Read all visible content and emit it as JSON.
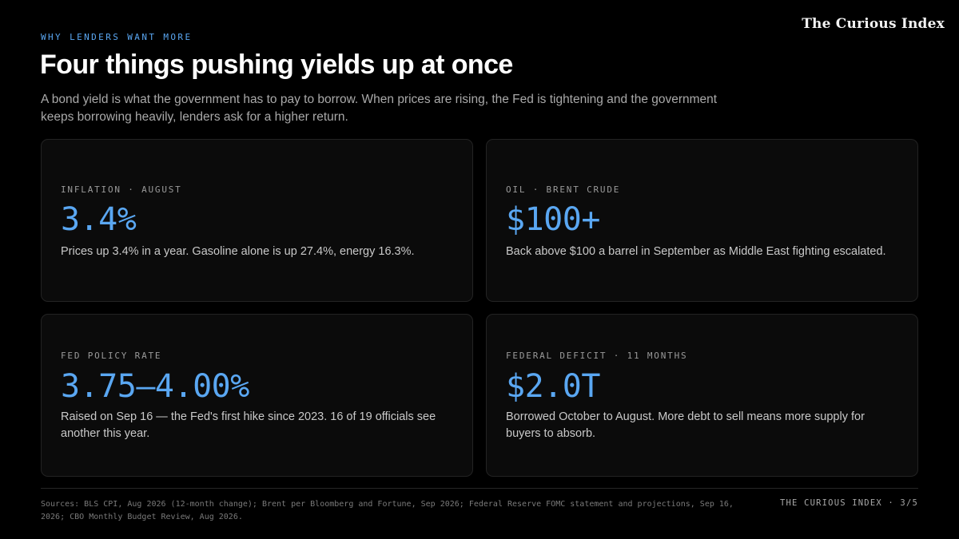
{
  "brand": "The Curious Index",
  "eyebrow": "WHY LENDERS WANT MORE",
  "title": "Four things pushing yields up at once",
  "subtitle": "A bond yield is what the government has to pay to borrow. When prices are rising, the Fed is tightening and the government keeps borrowing heavily, lenders ask for a higher return.",
  "accent_color": "#5aa7f2",
  "cards": [
    {
      "label": "INFLATION · AUGUST",
      "value": "3.4%",
      "description": "Prices up 3.4% in a year. Gasoline alone is up 27.4%, energy 16.3%."
    },
    {
      "label": "OIL · BRENT CRUDE",
      "value": "$100+",
      "description": "Back above $100 a barrel in September as Middle East fighting escalated."
    },
    {
      "label": "FED POLICY RATE",
      "value": "3.75–4.00%",
      "description": "Raised on Sep 16 — the Fed's first hike since 2023. 16 of 19 officials see another this year."
    },
    {
      "label": "FEDERAL DEFICIT · 11 MONTHS",
      "value": "$2.0T",
      "description": "Borrowed October to August. More debt to sell means more supply for buyers to absorb."
    }
  ],
  "footer": {
    "sources": "Sources: BLS CPI, Aug 2026 (12-month change); Brent per Bloomberg and Fortune, Sep 2026; Federal Reserve FOMC statement and projections, Sep 16, 2026; CBO Monthly Budget Review, Aug 2026.",
    "pager": "THE CURIOUS INDEX · 3/5"
  }
}
